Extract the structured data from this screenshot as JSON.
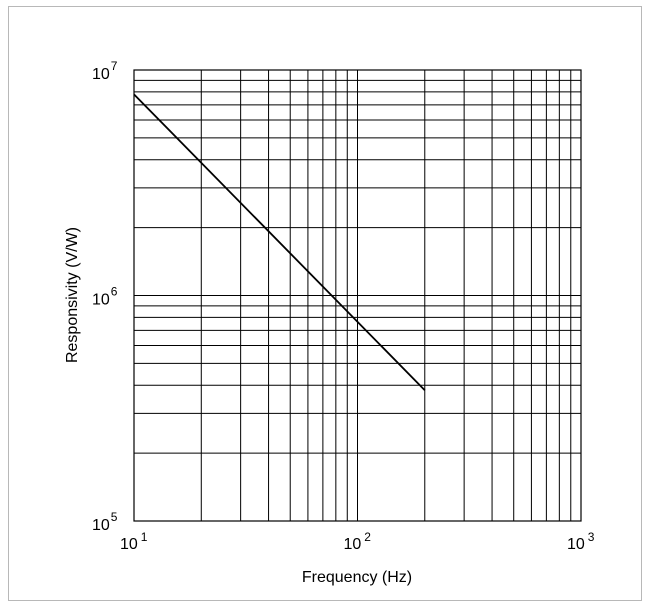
{
  "chart_data": {
    "type": "line",
    "title": "",
    "xlabel": "Frequency (Hz)",
    "ylabel": "Responsivity (V/W)",
    "x_scale": "log",
    "y_scale": "log",
    "xlim": [
      10,
      1000
    ],
    "ylim": [
      100000,
      10000000
    ],
    "grid": true,
    "legend": "none",
    "x_ticks": [
      {
        "base": "10",
        "exp": "1",
        "value": 10
      },
      {
        "base": "10",
        "exp": "2",
        "value": 100
      },
      {
        "base": "10",
        "exp": "3",
        "value": 1000
      }
    ],
    "y_ticks": [
      {
        "base": "10",
        "exp": "5",
        "value": 100000
      },
      {
        "base": "10",
        "exp": "6",
        "value": 1000000
      },
      {
        "base": "10",
        "exp": "7",
        "value": 10000000
      }
    ],
    "series": [
      {
        "color": "#000000",
        "x": [
          10,
          200
        ],
        "y": [
          7800000,
          380000
        ]
      }
    ]
  }
}
